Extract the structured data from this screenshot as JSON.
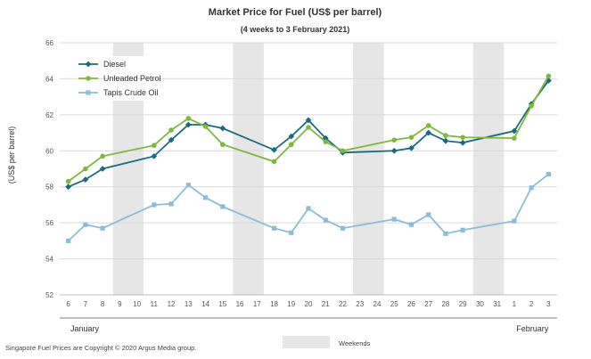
{
  "chart_data": {
    "type": "line",
    "title": "Market Price for Fuel (US$ per barrel)",
    "subtitle": "(4 weeks to 3 February 2021)",
    "ylabel": "(US$ per barrel)",
    "ylim": [
      52,
      66
    ],
    "yticks": [
      52,
      54,
      56,
      58,
      60,
      62,
      64,
      66
    ],
    "x_days": [
      6,
      7,
      8,
      9,
      10,
      11,
      12,
      13,
      14,
      15,
      16,
      17,
      18,
      19,
      20,
      21,
      22,
      23,
      24,
      25,
      26,
      27,
      28,
      29,
      30,
      31,
      1,
      2,
      3
    ],
    "month_labels": [
      {
        "label": "January",
        "start_index": 0,
        "end_index": 25
      },
      {
        "label": "February",
        "start_index": 26,
        "end_index": 28
      }
    ],
    "weekend_index_pairs": [
      [
        3,
        4
      ],
      [
        10,
        11
      ],
      [
        17,
        18
      ],
      [
        24,
        25
      ]
    ],
    "weekend_label": "Weekends",
    "series": [
      {
        "name": "Diesel",
        "color": "#1a6b80",
        "marker": "diamond",
        "values": [
          58.0,
          58.4,
          59.0,
          null,
          null,
          59.7,
          60.6,
          61.45,
          61.45,
          61.25,
          null,
          null,
          60.05,
          60.8,
          61.7,
          60.7,
          59.9,
          null,
          null,
          60.0,
          60.15,
          61.0,
          60.55,
          60.45,
          null,
          null,
          61.1,
          62.6,
          63.9
        ]
      },
      {
        "name": "Unleaded Petrol",
        "color": "#7fb93b",
        "marker": "circle",
        "values": [
          58.3,
          59.0,
          59.7,
          null,
          null,
          60.3,
          61.15,
          61.8,
          61.35,
          60.35,
          null,
          null,
          59.4,
          60.35,
          61.3,
          60.5,
          60.0,
          null,
          null,
          60.6,
          60.75,
          61.4,
          60.85,
          60.75,
          null,
          null,
          60.7,
          62.5,
          64.15
        ]
      },
      {
        "name": "Tapis Crude Oil",
        "color": "#8bbdd8",
        "marker": "square",
        "values": [
          55.0,
          55.9,
          55.7,
          null,
          null,
          57.0,
          57.05,
          58.1,
          57.4,
          56.9,
          null,
          null,
          55.7,
          55.45,
          56.8,
          56.15,
          55.7,
          null,
          null,
          56.2,
          55.9,
          56.45,
          55.4,
          55.6,
          null,
          null,
          56.1,
          57.95,
          58.7
        ]
      }
    ]
  },
  "footer": {
    "copyright": "Singapore Fuel Prices are Copyright © 2020 Argus Media group."
  }
}
